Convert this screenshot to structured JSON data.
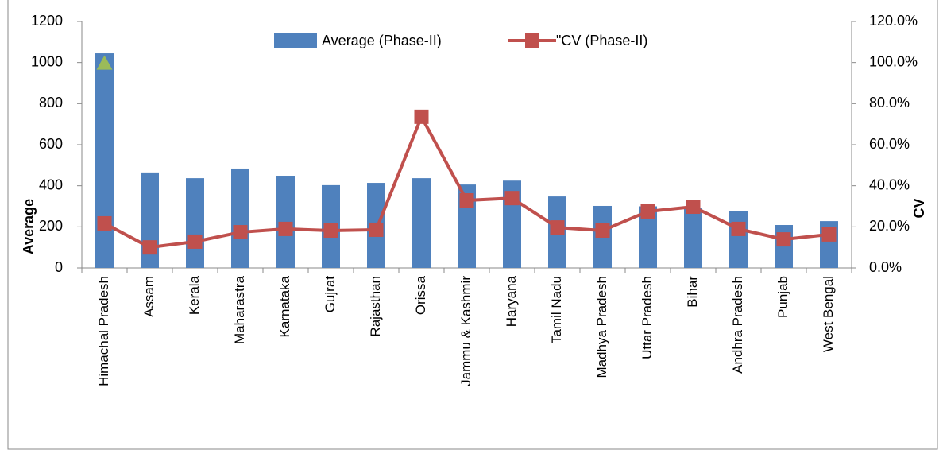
{
  "chart_data": {
    "type": "bar_line",
    "categories": [
      "Himachal Pradesh",
      "Assam",
      "Kerala",
      "Maharastra",
      "Karnataka",
      "Gujrat",
      "Rajasthan",
      "Orissa",
      "Jammu & Kashmir",
      "Haryana",
      "Tamil Nadu",
      "Madhya Pradesh",
      "Uttar Pradesh",
      "Bihar",
      "Andhra Pradesh",
      "Punjab",
      "West Bengal"
    ],
    "series": [
      {
        "name": "Average (Phase-II)",
        "type": "bar",
        "color": "#4f81bd",
        "values": [
          1045,
          465,
          437,
          484,
          449,
          403,
          414,
          437,
          406,
          425,
          348,
          302,
          300,
          290,
          275,
          209,
          228
        ]
      },
      {
        "name": "\"CV (Phase-II)",
        "type": "line",
        "axis": "y2",
        "color": "#c0504d",
        "values": [
          21.7,
          10.0,
          12.8,
          17.4,
          19.0,
          18.2,
          18.6,
          73.6,
          32.9,
          34.0,
          19.7,
          18.2,
          27.5,
          29.8,
          19.0,
          13.9,
          16.3
        ]
      },
      {
        "type": "point",
        "color": "#9bbb59",
        "values": [
          1000,
          null,
          null,
          null,
          null,
          null,
          null,
          null,
          null,
          null,
          null,
          null,
          null,
          null,
          null,
          null,
          null
        ]
      }
    ],
    "y_label": "Average",
    "y2_label": "CV",
    "ylim": [
      0,
      1200
    ],
    "yticks": [
      0,
      200,
      400,
      600,
      800,
      1000,
      1200
    ],
    "y2lim": [
      0,
      120
    ],
    "y2ticks": [
      {
        "value": 0,
        "label": "0.0%"
      },
      {
        "value": 20,
        "label": "20.0%"
      },
      {
        "value": 40,
        "label": "40.0%"
      },
      {
        "value": 60,
        "label": "60.0%"
      },
      {
        "value": 80,
        "label": "80.0%"
      },
      {
        "value": 100,
        "label": "100.0%"
      },
      {
        "value": 120,
        "label": "120.0%"
      }
    ],
    "legend": "top"
  }
}
